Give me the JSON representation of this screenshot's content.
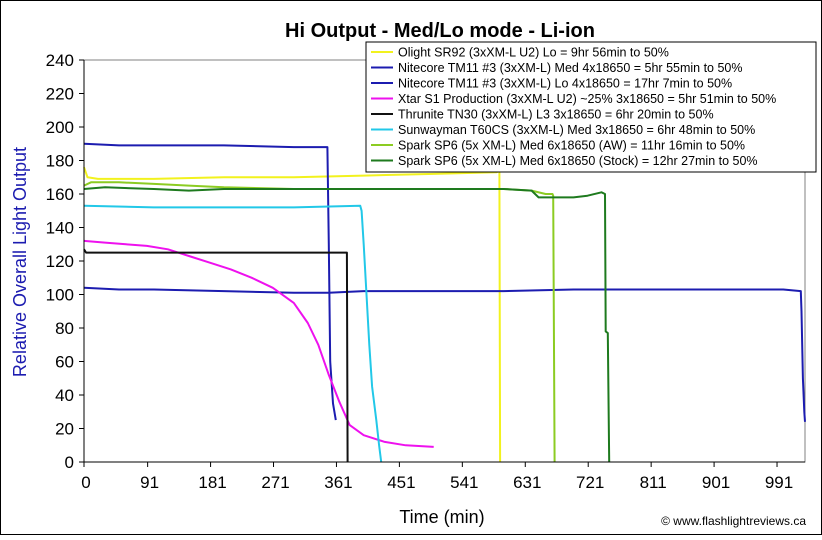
{
  "chart_data": {
    "type": "line",
    "title": "Hi Output - Med/Lo mode - Li-ion",
    "xlabel": "Time (min)",
    "ylabel": "Relative Overall Light Output",
    "xlim": [
      0,
      1031
    ],
    "ylim": [
      0,
      240
    ],
    "xticks": [
      0,
      91,
      181,
      271,
      361,
      451,
      541,
      631,
      721,
      811,
      901,
      991
    ],
    "yticks": [
      0,
      20,
      40,
      60,
      80,
      100,
      120,
      140,
      160,
      180,
      200,
      220,
      240
    ],
    "grid": false,
    "legend_position": "top-right",
    "credit": "© www.flashlightreviews.ca",
    "series": [
      {
        "name": "Olight SR92 (3xXM-L U2) Lo = 9hr 56min to 50%",
        "color": "#f2f21e",
        "points": [
          [
            0,
            176
          ],
          [
            5,
            170
          ],
          [
            20,
            169
          ],
          [
            100,
            169
          ],
          [
            200,
            170
          ],
          [
            300,
            170
          ],
          [
            400,
            171
          ],
          [
            500,
            172
          ],
          [
            590,
            173
          ],
          [
            594,
            174
          ],
          [
            595,
            0
          ]
        ]
      },
      {
        "name": "Nitecore TM11 #3 (3xXM-L) Med 4x18650 = 5hr 55min to 50%",
        "color": "#1c1cb0",
        "points": [
          [
            0,
            190
          ],
          [
            50,
            189
          ],
          [
            100,
            189
          ],
          [
            200,
            189
          ],
          [
            300,
            188
          ],
          [
            348,
            188
          ],
          [
            350,
            130
          ],
          [
            352,
            60
          ],
          [
            356,
            35
          ],
          [
            360,
            25
          ]
        ]
      },
      {
        "name": "Nitecore TM11 #3 (3xXM-L) Lo 4x18650 = 17hr 7min to 50%",
        "color": "#1c1cb0",
        "points": [
          [
            0,
            104
          ],
          [
            50,
            103
          ],
          [
            100,
            103
          ],
          [
            200,
            102
          ],
          [
            300,
            101
          ],
          [
            350,
            101
          ],
          [
            400,
            102
          ],
          [
            500,
            102
          ],
          [
            600,
            102
          ],
          [
            700,
            103
          ],
          [
            800,
            103
          ],
          [
            900,
            103
          ],
          [
            1000,
            103
          ],
          [
            1025,
            102
          ],
          [
            1026,
            90
          ],
          [
            1028,
            50
          ],
          [
            1030,
            30
          ],
          [
            1031,
            24
          ]
        ]
      },
      {
        "name": "Xtar S1 Production (3xXM-L U2) ~25% 3x18650 = 5hr 51min to 50%",
        "color": "#ee11ee",
        "points": [
          [
            0,
            132
          ],
          [
            30,
            131
          ],
          [
            60,
            130
          ],
          [
            90,
            129
          ],
          [
            120,
            127
          ],
          [
            150,
            123
          ],
          [
            180,
            119
          ],
          [
            210,
            115
          ],
          [
            240,
            110
          ],
          [
            270,
            104
          ],
          [
            300,
            95
          ],
          [
            320,
            83
          ],
          [
            335,
            70
          ],
          [
            350,
            52
          ],
          [
            365,
            36
          ],
          [
            380,
            22
          ],
          [
            400,
            16
          ],
          [
            430,
            12
          ],
          [
            460,
            10
          ],
          [
            500,
            9
          ]
        ]
      },
      {
        "name": "Thrunite TN30 (3xXM-L) L3 3x18650 = 6hr 20min to 50%",
        "color": "#111111",
        "points": [
          [
            0,
            127
          ],
          [
            3,
            125
          ],
          [
            100,
            125
          ],
          [
            200,
            125
          ],
          [
            300,
            125
          ],
          [
            376,
            125
          ],
          [
            377,
            0
          ]
        ]
      },
      {
        "name": "Sunwayman T60CS (3xXM-L) Med 3x18650 = 6hr 48min to 50%",
        "color": "#22c8e8",
        "points": [
          [
            0,
            153
          ],
          [
            100,
            152
          ],
          [
            200,
            152
          ],
          [
            300,
            152
          ],
          [
            395,
            153
          ],
          [
            397,
            150
          ],
          [
            400,
            130
          ],
          [
            404,
            100
          ],
          [
            408,
            70
          ],
          [
            412,
            45
          ],
          [
            418,
            25
          ],
          [
            422,
            10
          ],
          [
            425,
            0
          ]
        ]
      },
      {
        "name": "Spark SP6 (5x XM-L) Med 6x18650 (AW) = 11hr 16min to 50%",
        "color": "#8ccc22",
        "points": [
          [
            0,
            165
          ],
          [
            10,
            167
          ],
          [
            50,
            167
          ],
          [
            100,
            166
          ],
          [
            150,
            165
          ],
          [
            200,
            164
          ],
          [
            300,
            163
          ],
          [
            400,
            163
          ],
          [
            500,
            163
          ],
          [
            600,
            163
          ],
          [
            640,
            162
          ],
          [
            660,
            160
          ],
          [
            670,
            160
          ],
          [
            671,
            159
          ],
          [
            673,
            0
          ]
        ]
      },
      {
        "name": "Spark SP6 (5x XM-L) Med  6x18650 (Stock) = 12hr 27min to 50%",
        "color": "#1e7a1e",
        "points": [
          [
            0,
            163
          ],
          [
            30,
            164
          ],
          [
            100,
            163
          ],
          [
            150,
            162
          ],
          [
            200,
            163
          ],
          [
            300,
            163
          ],
          [
            400,
            163
          ],
          [
            500,
            163
          ],
          [
            600,
            163
          ],
          [
            640,
            162
          ],
          [
            650,
            158
          ],
          [
            700,
            158
          ],
          [
            720,
            159
          ],
          [
            740,
            161
          ],
          [
            745,
            160
          ],
          [
            746,
            78
          ],
          [
            749,
            77
          ],
          [
            751,
            0
          ]
        ]
      }
    ]
  }
}
